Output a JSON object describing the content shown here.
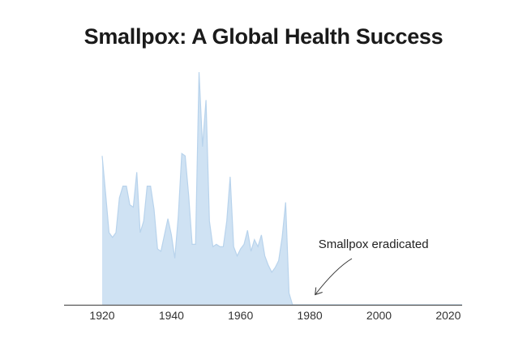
{
  "chart_data": {
    "type": "area",
    "title": "Smallpox: A Global Health Success",
    "xlabel": "",
    "ylabel": "",
    "xlim": [
      1909,
      2024
    ],
    "ylim": [
      0,
      100
    ],
    "x_ticks": [
      "1920",
      "1940",
      "1960",
      "1980",
      "2000",
      "2020"
    ],
    "grid": false,
    "legend": "none",
    "series": [
      {
        "color": "#cfe2f3",
        "line_color": "#b8d3ec",
        "x": [
          1920,
          1921,
          1922,
          1923,
          1924,
          1925,
          1926,
          1927,
          1928,
          1929,
          1930,
          1931,
          1932,
          1933,
          1934,
          1935,
          1936,
          1937,
          1938,
          1939,
          1940,
          1941,
          1942,
          1943,
          1944,
          1945,
          1946,
          1947,
          1948,
          1949,
          1950,
          1951,
          1952,
          1953,
          1954,
          1955,
          1956,
          1957,
          1958,
          1959,
          1960,
          1961,
          1962,
          1963,
          1964,
          1965,
          1966,
          1967,
          1968,
          1969,
          1970,
          1971,
          1972,
          1973,
          1974,
          1975,
          1976,
          1977,
          1978,
          1979,
          1980,
          1985,
          1990,
          1995,
          2000,
          2005,
          2010,
          2015,
          2020,
          2024
        ],
        "values": [
          64,
          48,
          31,
          29,
          31,
          46,
          51,
          51,
          43,
          42,
          57,
          31,
          36,
          51,
          51,
          41,
          24,
          23,
          30,
          37,
          30,
          20,
          38,
          65,
          64,
          47,
          26,
          26,
          100,
          68,
          88,
          36,
          25,
          26,
          25,
          25,
          36,
          55,
          25,
          21,
          24,
          26,
          32,
          23,
          28,
          25,
          30,
          21,
          17,
          14,
          16,
          19,
          29,
          44,
          5,
          0,
          0,
          0,
          0,
          0,
          0,
          0,
          0,
          0,
          0,
          0,
          0,
          0,
          0,
          0
        ]
      }
    ],
    "annotations": [
      {
        "text": "Smallpox eradicated",
        "x": 1982,
        "y": 4
      }
    ]
  }
}
